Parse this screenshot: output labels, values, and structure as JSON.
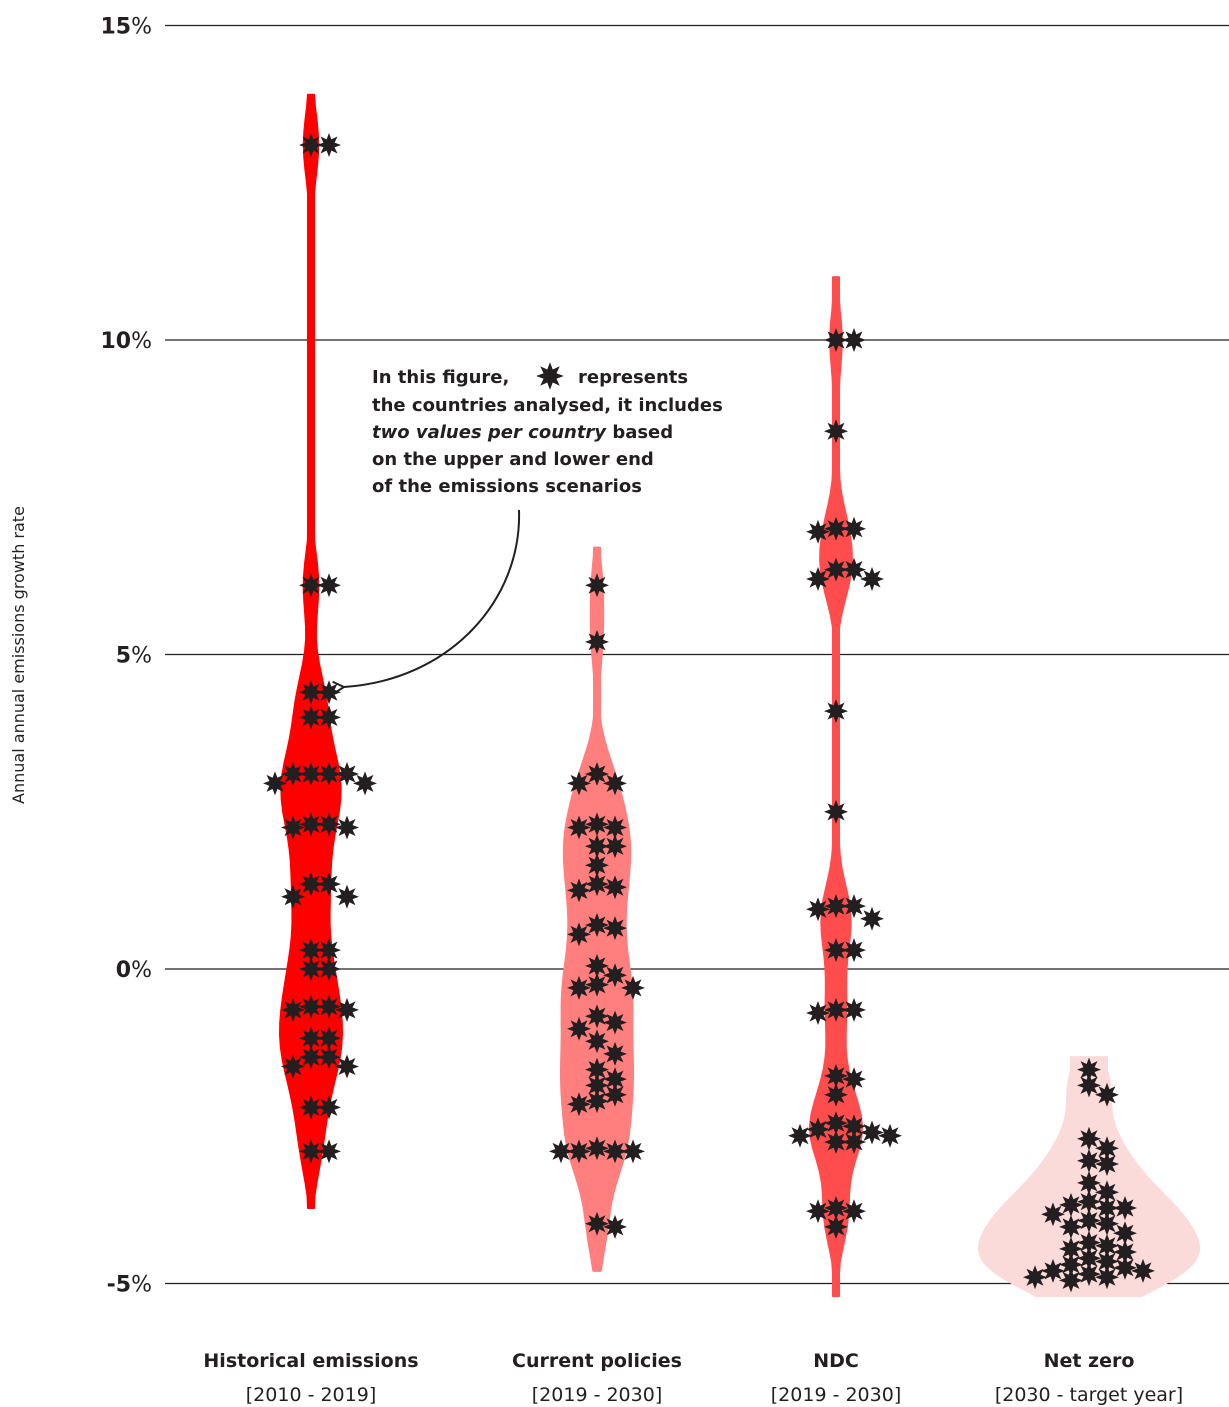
{
  "chart_data": {
    "type": "violin",
    "ylabel": "Annual annual emissions growth rate",
    "ylim": [
      -5,
      15
    ],
    "y_ticks": [
      {
        "value": 15,
        "num": "15",
        "unit": "%"
      },
      {
        "value": 10,
        "num": "10",
        "unit": "%"
      },
      {
        "value": 5,
        "num": "5",
        "unit": "%"
      },
      {
        "value": 0,
        "num": "0",
        "unit": "%"
      },
      {
        "value": -5,
        "num": "-5",
        "unit": "%"
      }
    ],
    "grid": true,
    "categories": [
      {
        "name": "Historical emissions",
        "period": "[2010 - 2019]",
        "color": "#ff0000",
        "range": [
          -3.8,
          13.9
        ],
        "points": [
          13.1,
          13.1,
          6.1,
          6.1,
          4.4,
          4.4,
          4.0,
          4.0,
          3.1,
          3.1,
          3.1,
          3.1,
          2.95,
          2.95,
          2.3,
          2.3,
          2.25,
          2.25,
          1.35,
          1.35,
          1.15,
          1.15,
          0.3,
          0.3,
          0.0,
          0.0,
          -0.6,
          -0.6,
          -0.65,
          -0.65,
          -1.1,
          -1.1,
          -1.4,
          -1.4,
          -1.55,
          -1.55,
          -2.2,
          -2.2,
          -2.9,
          -2.9
        ]
      },
      {
        "name": "Current policies",
        "period": "[2019 - 2030]",
        "color": "#ff7f7f",
        "range": [
          -4.8,
          6.7
        ],
        "points": [
          6.1,
          5.2,
          3.1,
          2.95,
          2.95,
          2.3,
          2.25,
          2.25,
          1.95,
          1.95,
          1.65,
          1.35,
          1.3,
          1.25,
          0.7,
          0.65,
          0.55,
          0.05,
          -0.1,
          -0.25,
          -0.3,
          -0.3,
          -0.75,
          -0.85,
          -0.95,
          -1.15,
          -1.35,
          -1.6,
          -1.75,
          -1.85,
          -2.0,
          -2.1,
          -2.15,
          -2.85,
          -2.9,
          -2.9,
          -2.9,
          -2.9,
          -4.05,
          -4.1
        ]
      },
      {
        "name": "NDC",
        "period": "[2019 - 2030]",
        "color": "#ff4d4d",
        "range": [
          -5.2,
          11.0
        ],
        "points": [
          10.0,
          10.0,
          8.55,
          7.0,
          7.0,
          6.95,
          6.35,
          6.35,
          6.2,
          6.2,
          4.1,
          2.5,
          1.0,
          1.0,
          0.95,
          0.8,
          0.3,
          0.3,
          -0.65,
          -0.65,
          -0.7,
          -1.7,
          -1.75,
          -2.0,
          -2.45,
          -2.5,
          -2.55,
          -2.6,
          -2.65,
          -2.65,
          -2.75,
          -2.75,
          -3.8,
          -3.85,
          -3.85,
          -4.1
        ]
      },
      {
        "name": "Net zero",
        "period": "[2030 - target year]",
        "color": "#fbdada",
        "range": [
          -5.2,
          -1.4
        ],
        "points": [
          -1.6,
          -1.85,
          -2.0,
          -2.7,
          -2.85,
          -3.05,
          -3.1,
          -3.4,
          -3.55,
          -3.7,
          -3.75,
          -3.8,
          -3.8,
          -3.9,
          -4.0,
          -4.05,
          -4.1,
          -4.2,
          -4.35,
          -4.4,
          -4.45,
          -4.5,
          -4.6,
          -4.65,
          -4.7,
          -4.75,
          -4.8,
          -4.8,
          -4.85,
          -4.9,
          -4.9,
          -4.95
        ]
      }
    ]
  },
  "annotation": {
    "line1_a": "In this figure,",
    "line1_b": "represents",
    "line2": "the countries analysed, it includes",
    "line3_it": "two values per country",
    "line3_b": " based",
    "line4": "on the upper and lower end",
    "line5": "of the emissions scenarios"
  },
  "colors": {
    "text": "#231f20",
    "gridline": "#231f20",
    "marker": "#231f20"
  },
  "marker_icon": "asterisk-star-icon"
}
